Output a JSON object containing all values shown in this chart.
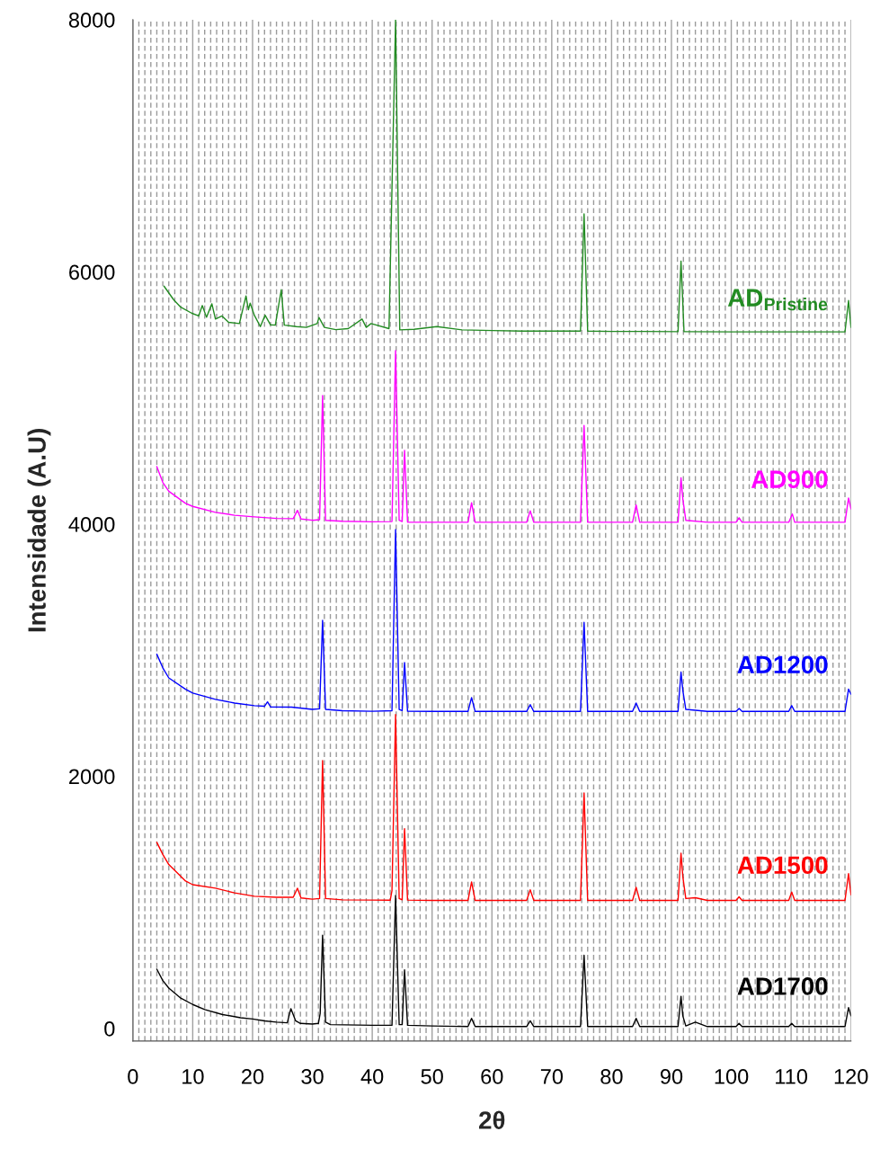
{
  "chart_data": {
    "type": "line",
    "xlabel": "2θ",
    "ylabel": "Intensidade (A.U)",
    "xlim": [
      0,
      120
    ],
    "xticks": [
      0,
      10,
      20,
      30,
      40,
      50,
      60,
      70,
      80,
      90,
      100,
      110,
      120
    ],
    "ylim": [
      -100,
      8000
    ],
    "yticks": [
      0,
      2000,
      4000,
      6000,
      8000
    ],
    "grid": "x",
    "legend": false,
    "marker": "none",
    "line_style": "solid",
    "series": [
      {
        "name": "AD$_{Pristine}$",
        "color": "#228b22",
        "x": [
          5.2,
          6.8,
          8,
          9.8,
          11.0,
          11.6,
          12.3,
          13.2,
          13.8,
          14.9,
          16,
          17.8,
          18.9,
          19.3,
          19.6,
          20.3,
          21.3,
          22.1,
          23.0,
          23.8,
          24.8,
          25.3,
          27.3,
          29,
          30.8,
          31.1,
          32,
          33.9,
          36,
          38.3,
          39.0,
          39.8,
          42.8,
          43.9,
          44.6,
          47,
          50.8,
          55,
          60,
          65,
          70,
          74.8,
          75.4,
          76.0,
          80,
          85,
          91.1,
          91.6,
          92.1,
          100,
          110,
          119.0,
          119.6,
          120
        ],
        "values": [
          5887,
          5780,
          5720,
          5673,
          5650,
          5733,
          5640,
          5747,
          5626,
          5650,
          5600,
          5590,
          5809,
          5700,
          5752,
          5656,
          5566,
          5656,
          5580,
          5578,
          5858,
          5578,
          5566,
          5560,
          5590,
          5638,
          5560,
          5542,
          5550,
          5626,
          5560,
          5590,
          5550,
          8000,
          5540,
          5545,
          5566,
          5540,
          5535,
          5530,
          5530,
          5530,
          6460,
          5530,
          5528,
          5528,
          5526,
          6085,
          5526,
          5524,
          5524,
          5524,
          5773,
          5560
        ]
      },
      {
        "name": "AD900",
        "color": "#ff00ff",
        "x": [
          4,
          5,
          6,
          8.8,
          10,
          13.8,
          17,
          20.3,
          24,
          26.8,
          27.5,
          28.1,
          30,
          31.2,
          31.7,
          32.2,
          35,
          40,
          43.3,
          43.9,
          44.5,
          45.0,
          45.4,
          45.9,
          50,
          56.0,
          56.6,
          57.2,
          65.8,
          66.4,
          67.0,
          74.8,
          75.4,
          76.0,
          83.5,
          84.1,
          84.7,
          91.1,
          91.6,
          91.9,
          92.4,
          96,
          100.8,
          101.3,
          101.8,
          109.6,
          110.2,
          110.6,
          119.0,
          119.6,
          120
        ],
        "values": [
          4456,
          4330,
          4260,
          4164,
          4140,
          4093,
          4070,
          4057,
          4045,
          4043,
          4109,
          4040,
          4030,
          4035,
          5019,
          4030,
          4022,
          4018,
          4020,
          5376,
          4030,
          4020,
          4585,
          4015,
          4014,
          4014,
          4169,
          4014,
          4014,
          4105,
          4014,
          4014,
          4782,
          4014,
          4014,
          4152,
          4014,
          4014,
          4366,
          4200,
          4030,
          4014,
          4014,
          4050,
          4014,
          4014,
          4080,
          4014,
          4014,
          4207,
          4120
        ]
      },
      {
        "name": "AD1200",
        "color": "#0000ff",
        "x": [
          4,
          5,
          6,
          8.8,
          10,
          13.8,
          17,
          20.3,
          22.0,
          22.5,
          23.0,
          26.5,
          30,
          31.2,
          31.7,
          32.2,
          35,
          40,
          43.3,
          43.9,
          44.5,
          45.0,
          45.4,
          45.9,
          50,
          56.0,
          56.6,
          57.2,
          65.8,
          66.4,
          67.0,
          74.8,
          75.4,
          76.0,
          83.5,
          84.1,
          84.7,
          91.1,
          91.6,
          91.9,
          92.4,
          96,
          100.8,
          101.3,
          101.8,
          109.6,
          110.1,
          110.6,
          119.0,
          119.6,
          120
        ],
        "values": [
          2968,
          2860,
          2780,
          2690,
          2660,
          2610,
          2580,
          2560,
          2555,
          2590,
          2550,
          2548,
          2530,
          2535,
          3237,
          2530,
          2520,
          2515,
          2520,
          3957,
          2530,
          2520,
          2902,
          2515,
          2514,
          2514,
          2624,
          2514,
          2514,
          2568,
          2514,
          2514,
          3220,
          2514,
          2514,
          2581,
          2514,
          2514,
          2826,
          2681,
          2530,
          2514,
          2514,
          2538,
          2514,
          2514,
          2560,
          2514,
          2514,
          2691,
          2650
        ]
      },
      {
        "name": "AD1500",
        "color": "#ff0000",
        "x": [
          4,
          5,
          6,
          8.8,
          10,
          13.8,
          17,
          20.3,
          24,
          26.8,
          27.5,
          28.1,
          30,
          31.2,
          31.7,
          32.2,
          35,
          40,
          43.0,
          43.3,
          43.9,
          44.5,
          45.0,
          45.4,
          45.9,
          50,
          56.0,
          56.6,
          57.2,
          65.8,
          66.4,
          67.0,
          74.8,
          75.4,
          76.0,
          83.5,
          84.1,
          84.7,
          91.1,
          91.6,
          91.9,
          92.4,
          94,
          96,
          100.8,
          101.3,
          101.8,
          109.6,
          110.1,
          110.6,
          119.0,
          119.6,
          120
        ],
        "values": [
          1476,
          1380,
          1300,
          1169,
          1140,
          1112,
          1075,
          1048,
          1040,
          1040,
          1112,
          1035,
          1025,
          1030,
          2125,
          1030,
          1020,
          1018,
          1017,
          1093,
          2490,
          1030,
          1020,
          1585,
          1018,
          1015,
          1015,
          1162,
          1015,
          1015,
          1100,
          1015,
          1015,
          1868,
          1015,
          1015,
          1120,
          1015,
          1015,
          1390,
          1205,
          1030,
          1037,
          1015,
          1015,
          1044,
          1015,
          1015,
          1081,
          1015,
          1015,
          1228,
          1060
        ]
      },
      {
        "name": "AD1700",
        "color": "#000000",
        "x": [
          4,
          5,
          6,
          8,
          10,
          12,
          15,
          18,
          20,
          22,
          24,
          25.8,
          26.4,
          27.2,
          28,
          30,
          31.0,
          31.3,
          31.7,
          32.2,
          33,
          40,
          43.3,
          43.9,
          44.5,
          45.0,
          45.4,
          45.9,
          50,
          56.0,
          56.6,
          57.2,
          65.8,
          66.4,
          67.0,
          74.8,
          75.4,
          76.0,
          83.5,
          84.1,
          84.7,
          91.1,
          91.6,
          91.9,
          92.4,
          94,
          96,
          100.8,
          101.3,
          101.8,
          109.6,
          110.1,
          110.6,
          119.0,
          119.6,
          120
        ],
        "values": [
          470,
          380,
          320,
          240,
          190,
          150,
          110,
          85,
          75,
          60,
          50,
          45,
          157,
          60,
          40,
          35,
          40,
          120,
          740,
          50,
          30,
          25,
          25,
          1055,
          30,
          30,
          465,
          25,
          20,
          15,
          80,
          15,
          15,
          60,
          15,
          15,
          580,
          15,
          15,
          80,
          15,
          15,
          255,
          100,
          20,
          50,
          15,
          15,
          40,
          15,
          15,
          40,
          15,
          15,
          166,
          100
        ]
      }
    ]
  }
}
